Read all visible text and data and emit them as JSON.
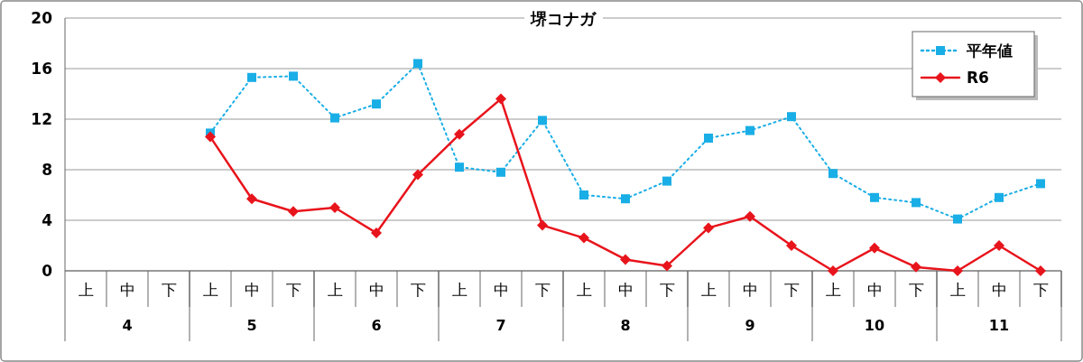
{
  "chart_data": {
    "type": "line",
    "title": "堺コナガ",
    "categories": [
      "上",
      "中",
      "下",
      "上",
      "中",
      "下",
      "上",
      "中",
      "下",
      "上",
      "中",
      "下",
      "上",
      "中",
      "下",
      "上",
      "中",
      "下",
      "上",
      "中",
      "下",
      "上",
      "中",
      "下"
    ],
    "annotations": [
      "4",
      "5",
      "6",
      "7",
      "8",
      "9",
      "10",
      "11"
    ],
    "ylim": [
      0,
      20
    ],
    "yticks": [
      0,
      4,
      8,
      12,
      16,
      20
    ],
    "grid": "y",
    "legend": "top right",
    "series": [
      {
        "name": "平年値",
        "color": "#1aaee6",
        "marker": "square",
        "line_style": "dotted",
        "values": [
          null,
          null,
          null,
          10.9,
          15.3,
          15.4,
          12.1,
          13.2,
          16.4,
          8.2,
          7.8,
          11.9,
          6.0,
          5.7,
          7.1,
          10.5,
          11.1,
          12.2,
          7.7,
          5.8,
          5.4,
          4.1,
          5.8,
          6.9
        ]
      },
      {
        "name": "R6",
        "color": "#e8141c",
        "marker": "diamond",
        "line_style": "solid",
        "values": [
          null,
          null,
          null,
          10.6,
          5.7,
          4.7,
          5.0,
          3.0,
          7.6,
          10.8,
          13.6,
          3.6,
          2.6,
          0.9,
          0.4,
          3.4,
          4.3,
          2.0,
          0,
          1.8,
          0.3,
          0,
          2.0,
          0
        ]
      }
    ]
  }
}
